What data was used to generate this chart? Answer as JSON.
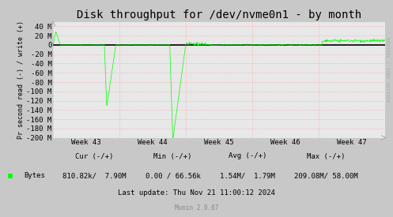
{
  "title": "Disk throughput for /dev/nvme0n1 - by month",
  "ylabel": "Pr second read (-) / write (+)",
  "bg_color": "#c8c8c8",
  "plot_bg_color": "#e8e8e8",
  "grid_color": "#ff9999",
  "line_color": "#00ff00",
  "zero_line_color": "#000000",
  "arrow_color": "#aaaacc",
  "rrdtool_color": "#aaaaaa",
  "ylim": [
    -200000000,
    50000000
  ],
  "yticks": [
    -200000000,
    -180000000,
    -160000000,
    -140000000,
    -120000000,
    -100000000,
    -80000000,
    -60000000,
    -40000000,
    -20000000,
    0,
    20000000,
    40000000
  ],
  "ytick_labels": [
    "-200 M",
    "-180 M",
    "-160 M",
    "-140 M",
    "-120 M",
    "-100 M",
    "-80 M",
    "-60 M",
    "-40 M",
    "-20 M",
    "0",
    "20 M",
    "40 M"
  ],
  "week_labels": [
    "Week 43",
    "Week 44",
    "Week 45",
    "Week 46",
    "Week 47"
  ],
  "legend_label": "Bytes",
  "cur_text": "Cur (-/+)",
  "cur_val": "810.82k/  7.90M",
  "min_text": "Min (-/+)",
  "min_val": "0.00 / 66.56k",
  "avg_text": "Avg (-/+)",
  "avg_val": "1.54M/  1.79M",
  "max_text": "Max (-/+)",
  "max_val": "209.08M/ 58.00M",
  "last_update": "Last update: Thu Nov 21 11:00:12 2024",
  "munin_version": "Munin 2.0.67",
  "rrdtool_text": "RRDTOOL / TOBI OETIKER",
  "title_fontsize": 10,
  "axis_fontsize": 6.5,
  "legend_fontsize": 6.5,
  "n_points": 900
}
